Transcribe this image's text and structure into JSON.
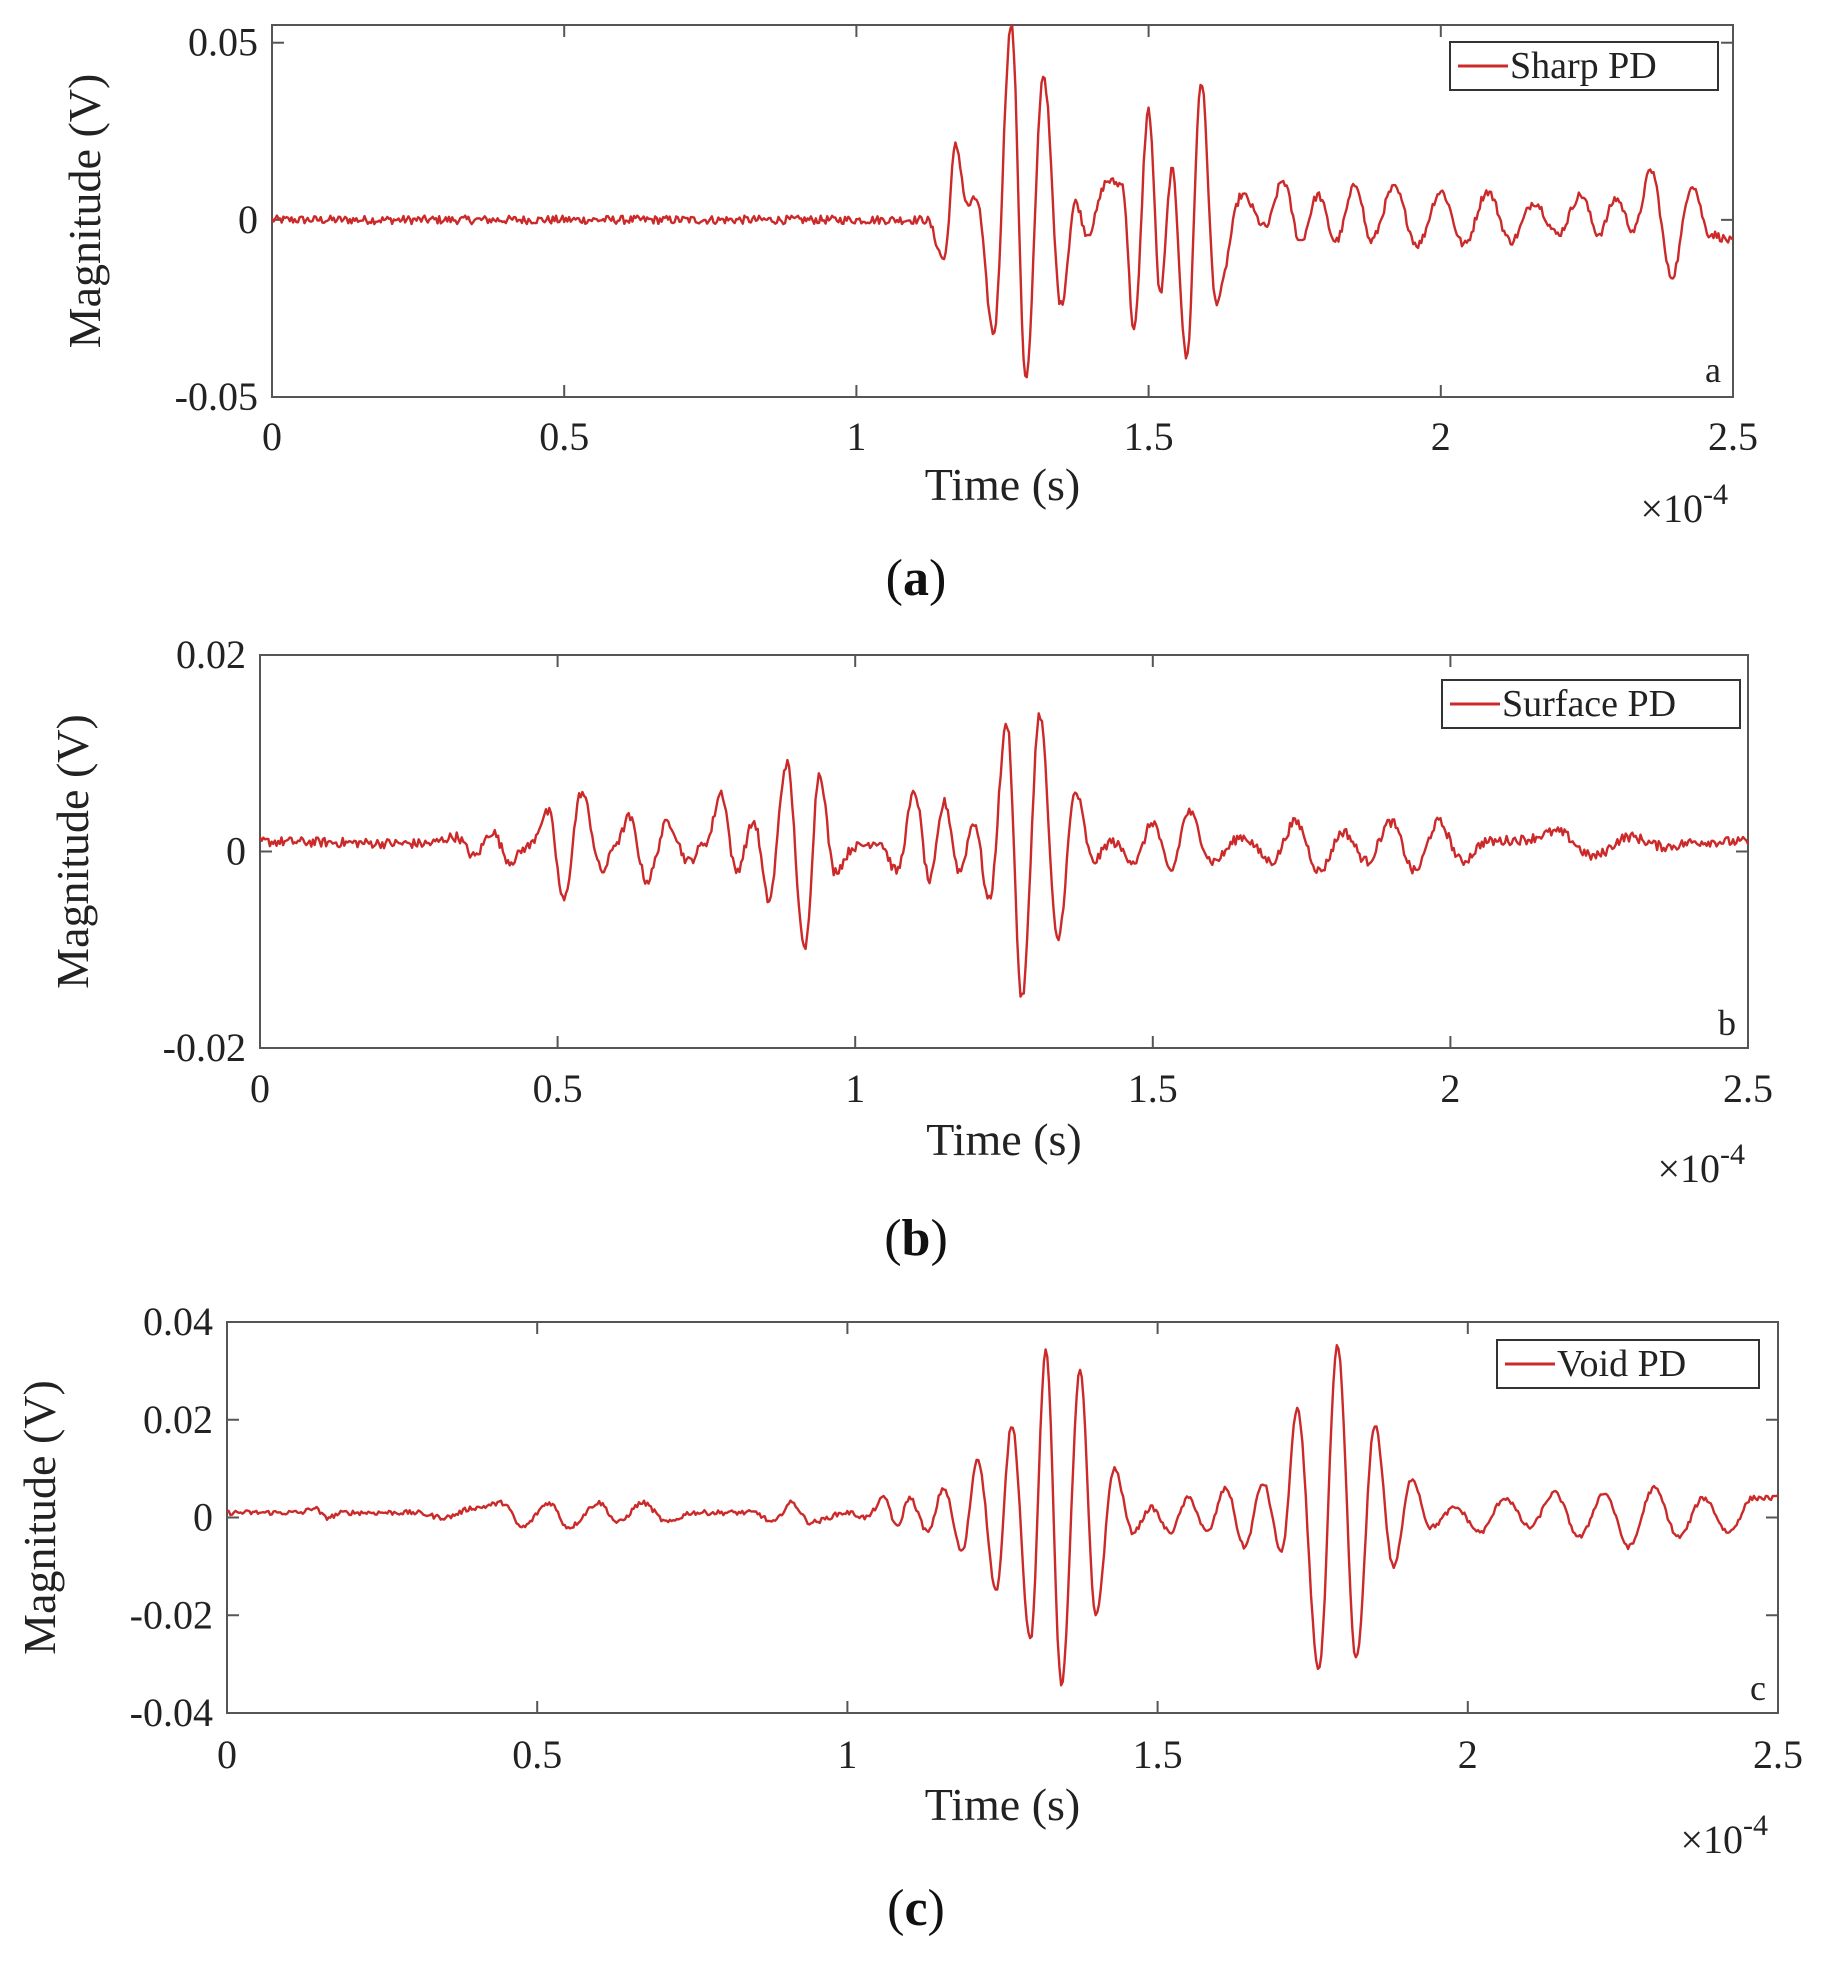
{
  "chart_data": [
    {
      "type": "line",
      "panel_letter": "a",
      "caption_letter": "a",
      "legend": "Sharp PD",
      "xlabel": "Time (s)",
      "ylabel": "Magnitude (V)",
      "x_multiplier": "10",
      "x_multiplier_exp": "-4",
      "xlim": [
        0,
        2.5
      ],
      "ylim": [
        -0.05,
        0.055
      ],
      "xticks": [
        0,
        0.5,
        1,
        1.5,
        2,
        2.5
      ],
      "xtick_labels": [
        "0",
        "0.5",
        "1",
        "1.5",
        "2",
        "2.5"
      ],
      "yticks": [
        -0.05,
        0,
        0.05
      ],
      "ytick_labels": [
        "-0.05",
        "0",
        "0.05"
      ],
      "line_color": "#cc2a2a",
      "noise": 0.0012,
      "points": [
        [
          0,
          0
        ],
        [
          1.12,
          0
        ],
        [
          1.15,
          -0.011
        ],
        [
          1.17,
          0.021
        ],
        [
          1.19,
          0.004
        ],
        [
          1.205,
          0.006
        ],
        [
          1.235,
          -0.032
        ],
        [
          1.265,
          0.055
        ],
        [
          1.29,
          -0.045
        ],
        [
          1.32,
          0.041
        ],
        [
          1.35,
          -0.024
        ],
        [
          1.375,
          0.005
        ],
        [
          1.395,
          -0.004
        ],
        [
          1.43,
          0.011
        ],
        [
          1.455,
          0.01
        ],
        [
          1.475,
          -0.031
        ],
        [
          1.5,
          0.031
        ],
        [
          1.52,
          -0.021
        ],
        [
          1.54,
          0.014
        ],
        [
          1.565,
          -0.039
        ],
        [
          1.59,
          0.039
        ],
        [
          1.615,
          -0.023
        ],
        [
          1.66,
          0.007
        ],
        [
          1.7,
          -0.002
        ],
        [
          1.73,
          0.011
        ],
        [
          1.76,
          -0.006
        ],
        [
          1.79,
          0.007
        ],
        [
          1.82,
          -0.006
        ],
        [
          1.855,
          0.01
        ],
        [
          1.88,
          -0.006
        ],
        [
          1.92,
          0.009
        ],
        [
          1.96,
          -0.007
        ],
        [
          2.0,
          0.008
        ],
        [
          2.04,
          -0.007
        ],
        [
          2.08,
          0.008
        ],
        [
          2.12,
          -0.006
        ],
        [
          2.16,
          0.005
        ],
        [
          2.2,
          -0.004
        ],
        [
          2.24,
          0.007
        ],
        [
          2.27,
          -0.004
        ],
        [
          2.3,
          0.006
        ],
        [
          2.33,
          -0.003
        ],
        [
          2.36,
          0.014
        ],
        [
          2.395,
          -0.016
        ],
        [
          2.43,
          0.01
        ],
        [
          2.46,
          -0.004
        ],
        [
          2.5,
          -0.006
        ]
      ]
    },
    {
      "type": "line",
      "panel_letter": "b",
      "caption_letter": "b",
      "legend": "Surface PD",
      "xlabel": "Time (s)",
      "ylabel": "Magnitude (V)",
      "x_multiplier": "10",
      "x_multiplier_exp": "-4",
      "xlim": [
        0,
        2.5
      ],
      "ylim": [
        -0.02,
        0.02
      ],
      "xticks": [
        0,
        0.5,
        1,
        1.5,
        2,
        2.5
      ],
      "xtick_labels": [
        "0",
        "0.5",
        "1",
        "1.5",
        "2",
        "2.5"
      ],
      "yticks": [
        -0.02,
        0,
        0.02
      ],
      "ytick_labels": [
        "-0.02",
        "0",
        "0.02"
      ],
      "line_color": "#cc2a2a",
      "noise": 0.0005,
      "points": [
        [
          0,
          0.001
        ],
        [
          0.28,
          0.0008
        ],
        [
          0.33,
          0.0015
        ],
        [
          0.36,
          -0.0005
        ],
        [
          0.39,
          0.002
        ],
        [
          0.42,
          -0.001
        ],
        [
          0.45,
          0.0005
        ],
        [
          0.485,
          0.004
        ],
        [
          0.51,
          -0.005
        ],
        [
          0.54,
          0.006
        ],
        [
          0.575,
          -0.002
        ],
        [
          0.6,
          0.001
        ],
        [
          0.62,
          0.0035
        ],
        [
          0.65,
          -0.003
        ],
        [
          0.685,
          0.003
        ],
        [
          0.72,
          -0.001
        ],
        [
          0.75,
          0.001
        ],
        [
          0.775,
          0.006
        ],
        [
          0.8,
          -0.002
        ],
        [
          0.83,
          0.003
        ],
        [
          0.855,
          -0.005
        ],
        [
          0.885,
          0.009
        ],
        [
          0.915,
          -0.01
        ],
        [
          0.94,
          0.008
        ],
        [
          0.965,
          -0.002
        ],
        [
          1.0,
          0.0005
        ],
        [
          1.04,
          0.001
        ],
        [
          1.07,
          -0.002
        ],
        [
          1.1,
          0.006
        ],
        [
          1.125,
          -0.003
        ],
        [
          1.15,
          0.005
        ],
        [
          1.175,
          -0.002
        ],
        [
          1.2,
          0.003
        ],
        [
          1.225,
          -0.005
        ],
        [
          1.255,
          0.013
        ],
        [
          1.28,
          -0.015
        ],
        [
          1.31,
          0.014
        ],
        [
          1.34,
          -0.009
        ],
        [
          1.37,
          0.006
        ],
        [
          1.4,
          -0.001
        ],
        [
          1.43,
          0.001
        ],
        [
          1.47,
          -0.001
        ],
        [
          1.5,
          0.003
        ],
        [
          1.53,
          -0.002
        ],
        [
          1.56,
          0.004
        ],
        [
          1.6,
          -0.001
        ],
        [
          1.65,
          0.0015
        ],
        [
          1.7,
          -0.001
        ],
        [
          1.74,
          0.003
        ],
        [
          1.78,
          -0.002
        ],
        [
          1.82,
          0.002
        ],
        [
          1.86,
          -0.001
        ],
        [
          1.9,
          0.003
        ],
        [
          1.94,
          -0.002
        ],
        [
          1.98,
          0.003
        ],
        [
          2.02,
          -0.001
        ],
        [
          2.06,
          0.001
        ],
        [
          2.12,
          0.0012
        ],
        [
          2.18,
          0.002
        ],
        [
          2.24,
          -0.0005
        ],
        [
          2.3,
          0.0015
        ],
        [
          2.36,
          0.0005
        ],
        [
          2.42,
          0.001
        ],
        [
          2.5,
          0.001
        ]
      ]
    },
    {
      "type": "line",
      "panel_letter": "c",
      "caption_letter": "c",
      "legend": "Void PD",
      "xlabel": "Time (s)",
      "ylabel": "Magnitude (V)",
      "x_multiplier": "10",
      "x_multiplier_exp": "-4",
      "xlim": [
        0,
        2.5
      ],
      "ylim": [
        -0.04,
        0.04
      ],
      "xticks": [
        0,
        0.5,
        1,
        1.5,
        2,
        2.5
      ],
      "xtick_labels": [
        "0",
        "0.5",
        "1",
        "1.5",
        "2",
        "2.5"
      ],
      "yticks": [
        -0.04,
        -0.02,
        0,
        0.02,
        0.04
      ],
      "ytick_labels": [
        "-0.04",
        "-0.02",
        "0",
        "0.02",
        "0.04"
      ],
      "line_color": "#cc2a2a",
      "noise": 0.0005,
      "points": [
        [
          0,
          0.001
        ],
        [
          0.12,
          0.001
        ],
        [
          0.14,
          0.002
        ],
        [
          0.16,
          0
        ],
        [
          0.19,
          0.001
        ],
        [
          0.3,
          0.001
        ],
        [
          0.35,
          0
        ],
        [
          0.4,
          0.002
        ],
        [
          0.445,
          0.003
        ],
        [
          0.475,
          -0.002
        ],
        [
          0.52,
          0.003
        ],
        [
          0.55,
          -0.002
        ],
        [
          0.6,
          0.003
        ],
        [
          0.63,
          -0.001
        ],
        [
          0.67,
          0.003
        ],
        [
          0.71,
          -0.001
        ],
        [
          0.75,
          0.001
        ],
        [
          0.85,
          0.001
        ],
        [
          0.88,
          -0.001
        ],
        [
          0.91,
          0.003
        ],
        [
          0.94,
          -0.001
        ],
        [
          1.0,
          0.001
        ],
        [
          1.03,
          0
        ],
        [
          1.06,
          0.004
        ],
        [
          1.08,
          -0.002
        ],
        [
          1.1,
          0.004
        ],
        [
          1.13,
          -0.003
        ],
        [
          1.155,
          0.006
        ],
        [
          1.185,
          -0.007
        ],
        [
          1.21,
          0.012
        ],
        [
          1.24,
          -0.015
        ],
        [
          1.265,
          0.019
        ],
        [
          1.295,
          -0.025
        ],
        [
          1.32,
          0.034
        ],
        [
          1.345,
          -0.034
        ],
        [
          1.375,
          0.03
        ],
        [
          1.4,
          -0.02
        ],
        [
          1.43,
          0.01
        ],
        [
          1.46,
          -0.003
        ],
        [
          1.49,
          0.002
        ],
        [
          1.52,
          -0.003
        ],
        [
          1.55,
          0.004
        ],
        [
          1.58,
          -0.003
        ],
        [
          1.61,
          0.006
        ],
        [
          1.64,
          -0.006
        ],
        [
          1.67,
          0.007
        ],
        [
          1.7,
          -0.007
        ],
        [
          1.725,
          0.022
        ],
        [
          1.76,
          -0.031
        ],
        [
          1.79,
          0.035
        ],
        [
          1.82,
          -0.029
        ],
        [
          1.85,
          0.019
        ],
        [
          1.88,
          -0.01
        ],
        [
          1.91,
          0.008
        ],
        [
          1.94,
          -0.002
        ],
        [
          1.98,
          0.002
        ],
        [
          2.02,
          -0.003
        ],
        [
          2.06,
          0.004
        ],
        [
          2.1,
          -0.002
        ],
        [
          2.14,
          0.005
        ],
        [
          2.18,
          -0.004
        ],
        [
          2.22,
          0.005
        ],
        [
          2.26,
          -0.006
        ],
        [
          2.3,
          0.006
        ],
        [
          2.34,
          -0.004
        ],
        [
          2.38,
          0.004
        ],
        [
          2.42,
          -0.003
        ],
        [
          2.46,
          0.004
        ],
        [
          2.5,
          0.004
        ]
      ]
    }
  ]
}
